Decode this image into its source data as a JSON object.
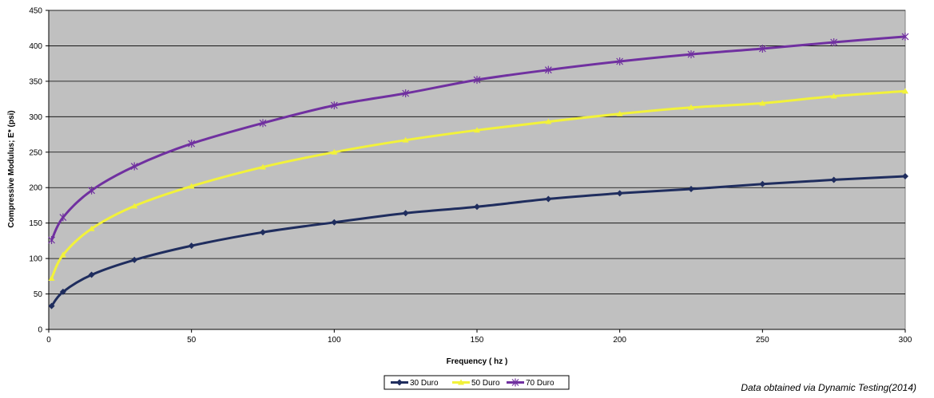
{
  "chart_data": {
    "type": "line",
    "title": "",
    "xlabel": "Frequency ( hz )",
    "ylabel": "Compressive Modulus; E* (psi)",
    "xlim": [
      0,
      300
    ],
    "ylim": [
      0,
      450
    ],
    "xticks": [
      0,
      50,
      100,
      150,
      200,
      250,
      300
    ],
    "yticks": [
      0,
      50,
      100,
      150,
      200,
      250,
      300,
      350,
      400,
      450
    ],
    "grid": true,
    "legend_position": "bottom-center",
    "plot_background": "#c0c0c0",
    "x": [
      1,
      5,
      15,
      30,
      50,
      75,
      100,
      125,
      150,
      175,
      200,
      225,
      250,
      275,
      300
    ],
    "series": [
      {
        "name": "30 Duro",
        "color": "#1f2d5e",
        "marker": "diamond",
        "values": [
          33,
          53,
          77,
          98,
          118,
          137,
          151,
          164,
          173,
          184,
          192,
          198,
          205,
          211,
          216
        ]
      },
      {
        "name": "50 Duro",
        "color": "#f2f23a",
        "marker": "triangle",
        "values": [
          72,
          105,
          142,
          174,
          202,
          229,
          250,
          267,
          281,
          293,
          304,
          313,
          319,
          329,
          336
        ]
      },
      {
        "name": "70 Duro",
        "color": "#7030a0",
        "marker": "star",
        "values": [
          126,
          158,
          196,
          230,
          262,
          291,
          316,
          333,
          352,
          366,
          378,
          388,
          396,
          405,
          413
        ]
      }
    ]
  },
  "footnote": "Data obtained via Dynamic Testing(2014)"
}
